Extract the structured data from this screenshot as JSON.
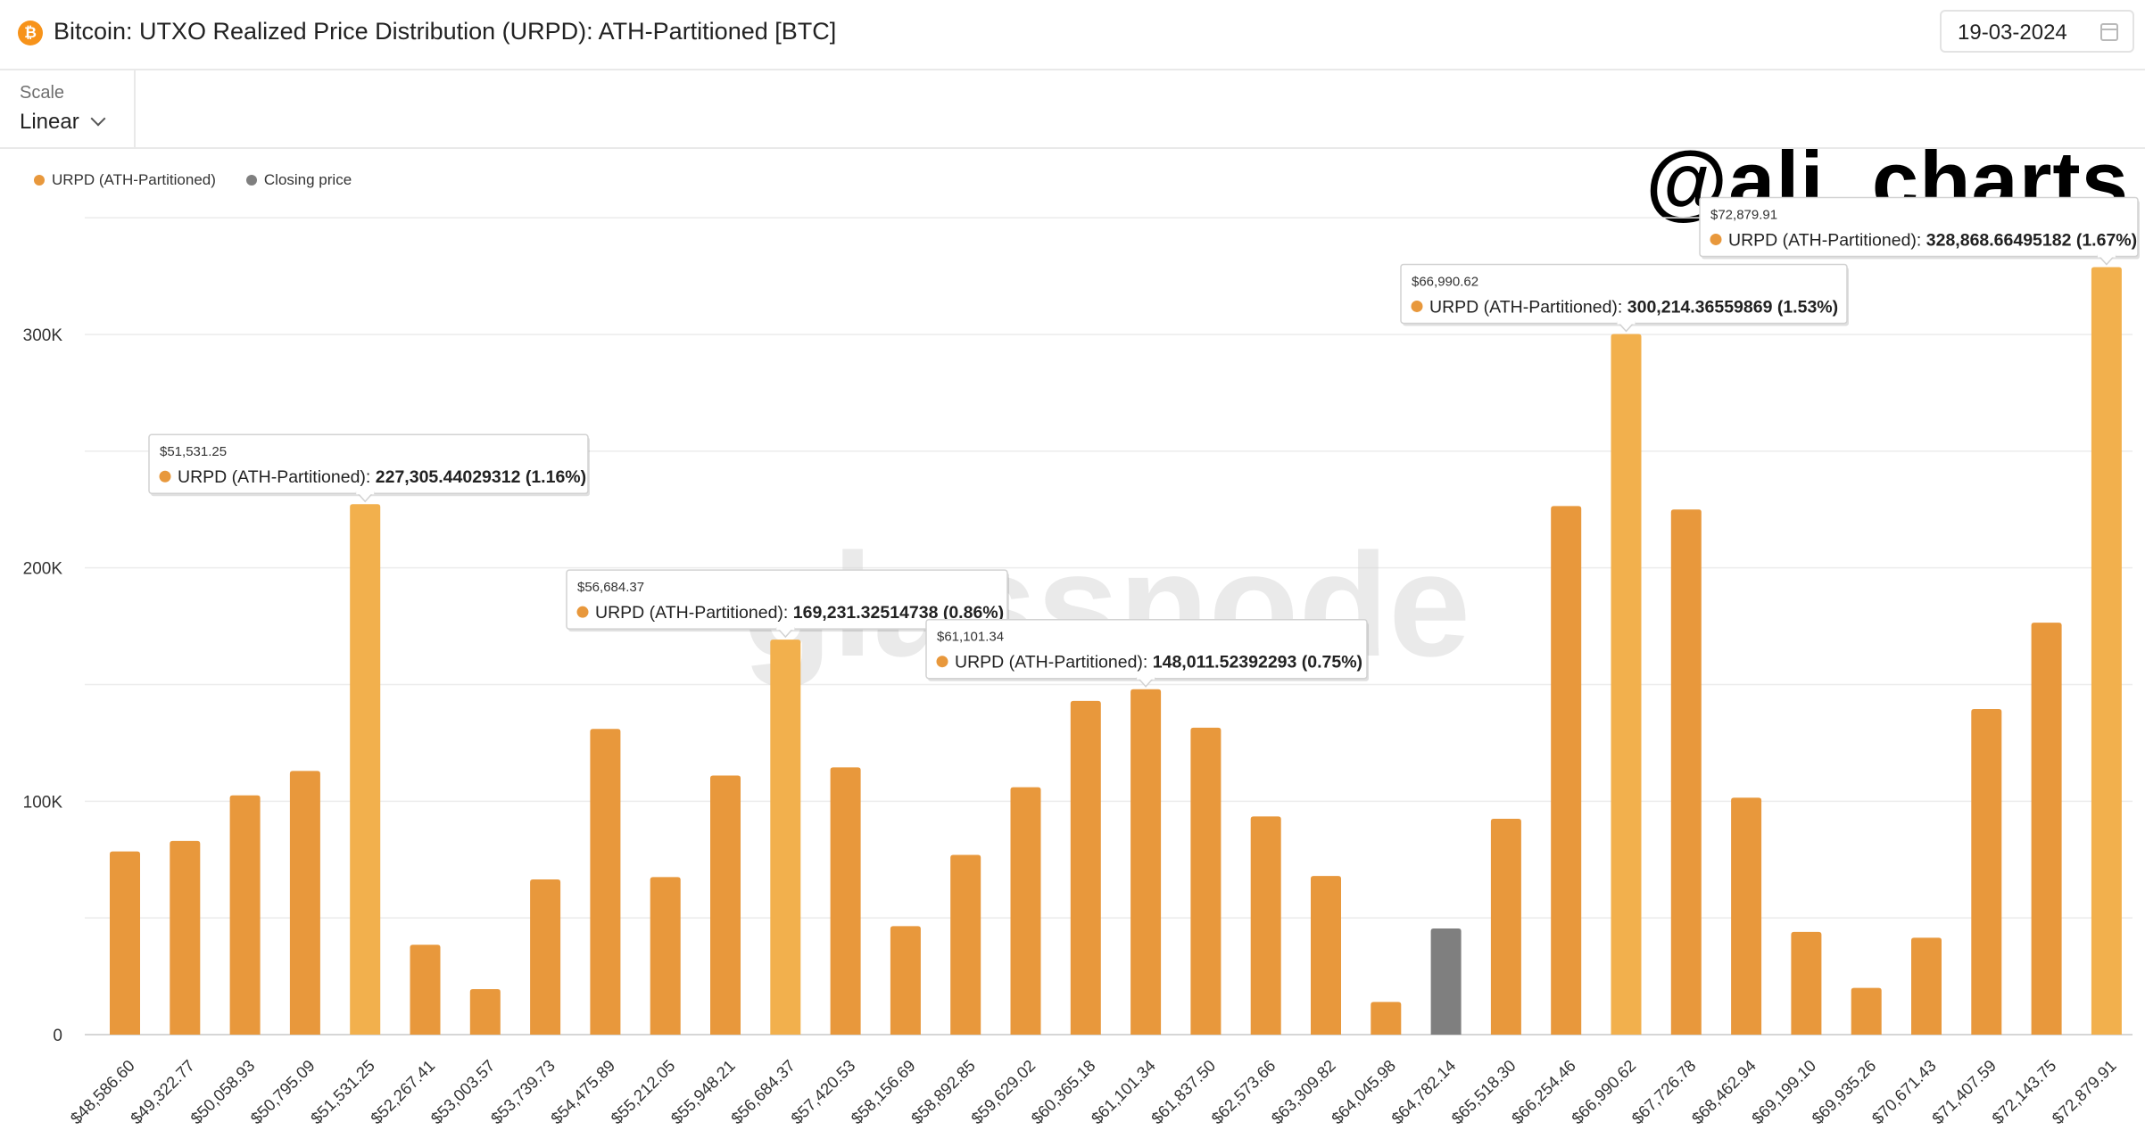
{
  "header": {
    "title": "Bitcoin: UTXO Realized Price Distribution (URPD): ATH-Partitioned [BTC]",
    "icon": "bitcoin-icon",
    "date": "19-03-2024",
    "calendar_icon": "calendar-icon"
  },
  "toolbar": {
    "scale_label": "Scale",
    "scale_value": "Linear",
    "handle": "@ali_charts"
  },
  "legend": [
    {
      "label": "URPD (ATH-Partitioned)",
      "color": "#e8983c"
    },
    {
      "label": "Closing price",
      "color": "#7f7f7f"
    }
  ],
  "colors": {
    "bar": "#e8983c",
    "bar_highlight": "#f2b04d",
    "closing_price_bar": "#7f7f7f",
    "grid": "#ececec",
    "watermark": "#d9d9d9"
  },
  "watermark": "glassnode",
  "chart_data": {
    "type": "bar",
    "title": "",
    "xlabel": "",
    "ylabel": "",
    "ylim": [
      0,
      350000
    ],
    "y_ticks": [
      0,
      100000,
      200000,
      300000
    ],
    "y_tick_labels": [
      "0",
      "100K",
      "200K",
      "300K"
    ],
    "grid": true,
    "legend_position": "top-left",
    "categories": [
      "$48,586.60",
      "$49,322.77",
      "$50,058.93",
      "$50,795.09",
      "$51,531.25",
      "$52,267.41",
      "$53,003.57",
      "$53,739.73",
      "$54,475.89",
      "$55,212.05",
      "$55,948.21",
      "$56,684.37",
      "$57,420.53",
      "$58,156.69",
      "$58,892.85",
      "$59,629.02",
      "$60,365.18",
      "$61,101.34",
      "$61,837.50",
      "$62,573.66",
      "$63,309.82",
      "$64,045.98",
      "$64,782.14",
      "$65,518.30",
      "$66,254.46",
      "$66,990.62",
      "$67,726.78",
      "$68,462.94",
      "$69,199.10",
      "$69,935.26",
      "$70,671.43",
      "$71,407.59",
      "$72,143.75",
      "$72,879.91"
    ],
    "series": [
      {
        "name": "URPD (ATH-Partitioned)",
        "values": [
          78500,
          83000,
          102500,
          113000,
          227305.44,
          38500,
          19500,
          66500,
          131000,
          67500,
          111000,
          169231.33,
          114500,
          46500,
          77000,
          106000,
          143000,
          148011.52,
          131500,
          93500,
          68000,
          14000,
          null,
          92500,
          226500,
          300214.37,
          225000,
          101500,
          44000,
          20000,
          41500,
          139500,
          176500,
          328868.66
        ]
      },
      {
        "name": "Closing price",
        "values": [
          null,
          null,
          null,
          null,
          null,
          null,
          null,
          null,
          null,
          null,
          null,
          null,
          null,
          null,
          null,
          null,
          null,
          null,
          null,
          null,
          null,
          null,
          45500,
          null,
          null,
          null,
          null,
          null,
          null,
          null,
          null,
          null,
          null,
          null
        ]
      }
    ],
    "highlighted_indices": [
      4,
      11,
      25,
      33
    ],
    "tooltips": [
      {
        "index": 4,
        "price": "$51,531.25",
        "series": "URPD (ATH-Partitioned)",
        "value": "227,305.44029312 (1.16%)"
      },
      {
        "index": 11,
        "price": "$56,684.37",
        "series": "URPD (ATH-Partitioned)",
        "value": "169,231.32514738 (0.86%)"
      },
      {
        "index": 17,
        "price": "$61,101.34",
        "series": "URPD (ATH-Partitioned)",
        "value": "148,011.52392293 (0.75%)"
      },
      {
        "index": 25,
        "price": "$66,990.62",
        "series": "URPD (ATH-Partitioned)",
        "value": "300,214.36559869 (1.53%)"
      },
      {
        "index": 33,
        "price": "$72,879.91",
        "series": "URPD (ATH-Partitioned)",
        "value": "328,868.66495182 (1.67%)"
      }
    ]
  }
}
